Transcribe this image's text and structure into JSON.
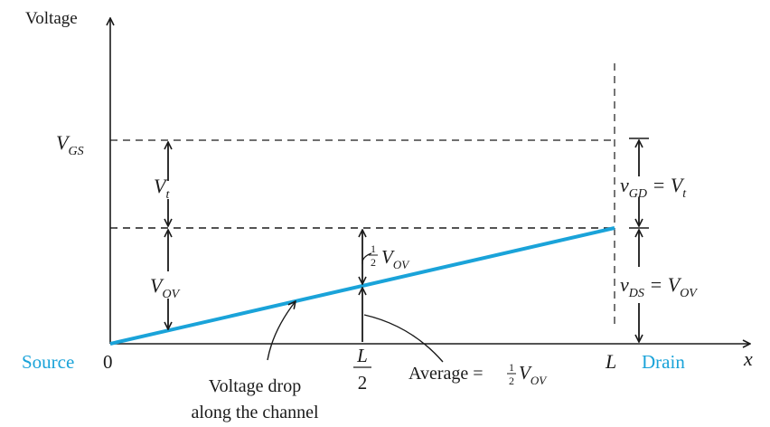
{
  "axes": {
    "y_label": "Voltage",
    "x_label": "x",
    "origin_label": "0",
    "source_label": "Source",
    "drain_label": "Drain",
    "L_label": "L",
    "half_L_num": "L",
    "half_L_den": "2"
  },
  "levels": {
    "vgs_main": "V",
    "vgs_sub": "GS",
    "vt_main": "V",
    "vt_sub": "t",
    "vov_main": "V",
    "vov_sub": "OV"
  },
  "mid_annotation": {
    "half_num": "1",
    "half_den": "2",
    "v_main": "V",
    "v_sub": "OV"
  },
  "right_annotations": {
    "vgd_v": "v",
    "vgd_sub": "GD",
    "vgd_eq": " = V",
    "vgd_rhs_sub": "t",
    "vds_v": "v",
    "vds_sub": "DS",
    "vds_eq": " = V",
    "vds_rhs_sub": "OV"
  },
  "callouts": {
    "drop_line1": "Voltage drop",
    "drop_line2": "along the channel",
    "average_text": "Average = ",
    "avg_num": "1",
    "avg_den": "2",
    "avg_v": "V",
    "avg_sub": "OV"
  },
  "colors": {
    "channel_line": "#1aa3d9",
    "axis": "#1a1a1a"
  }
}
